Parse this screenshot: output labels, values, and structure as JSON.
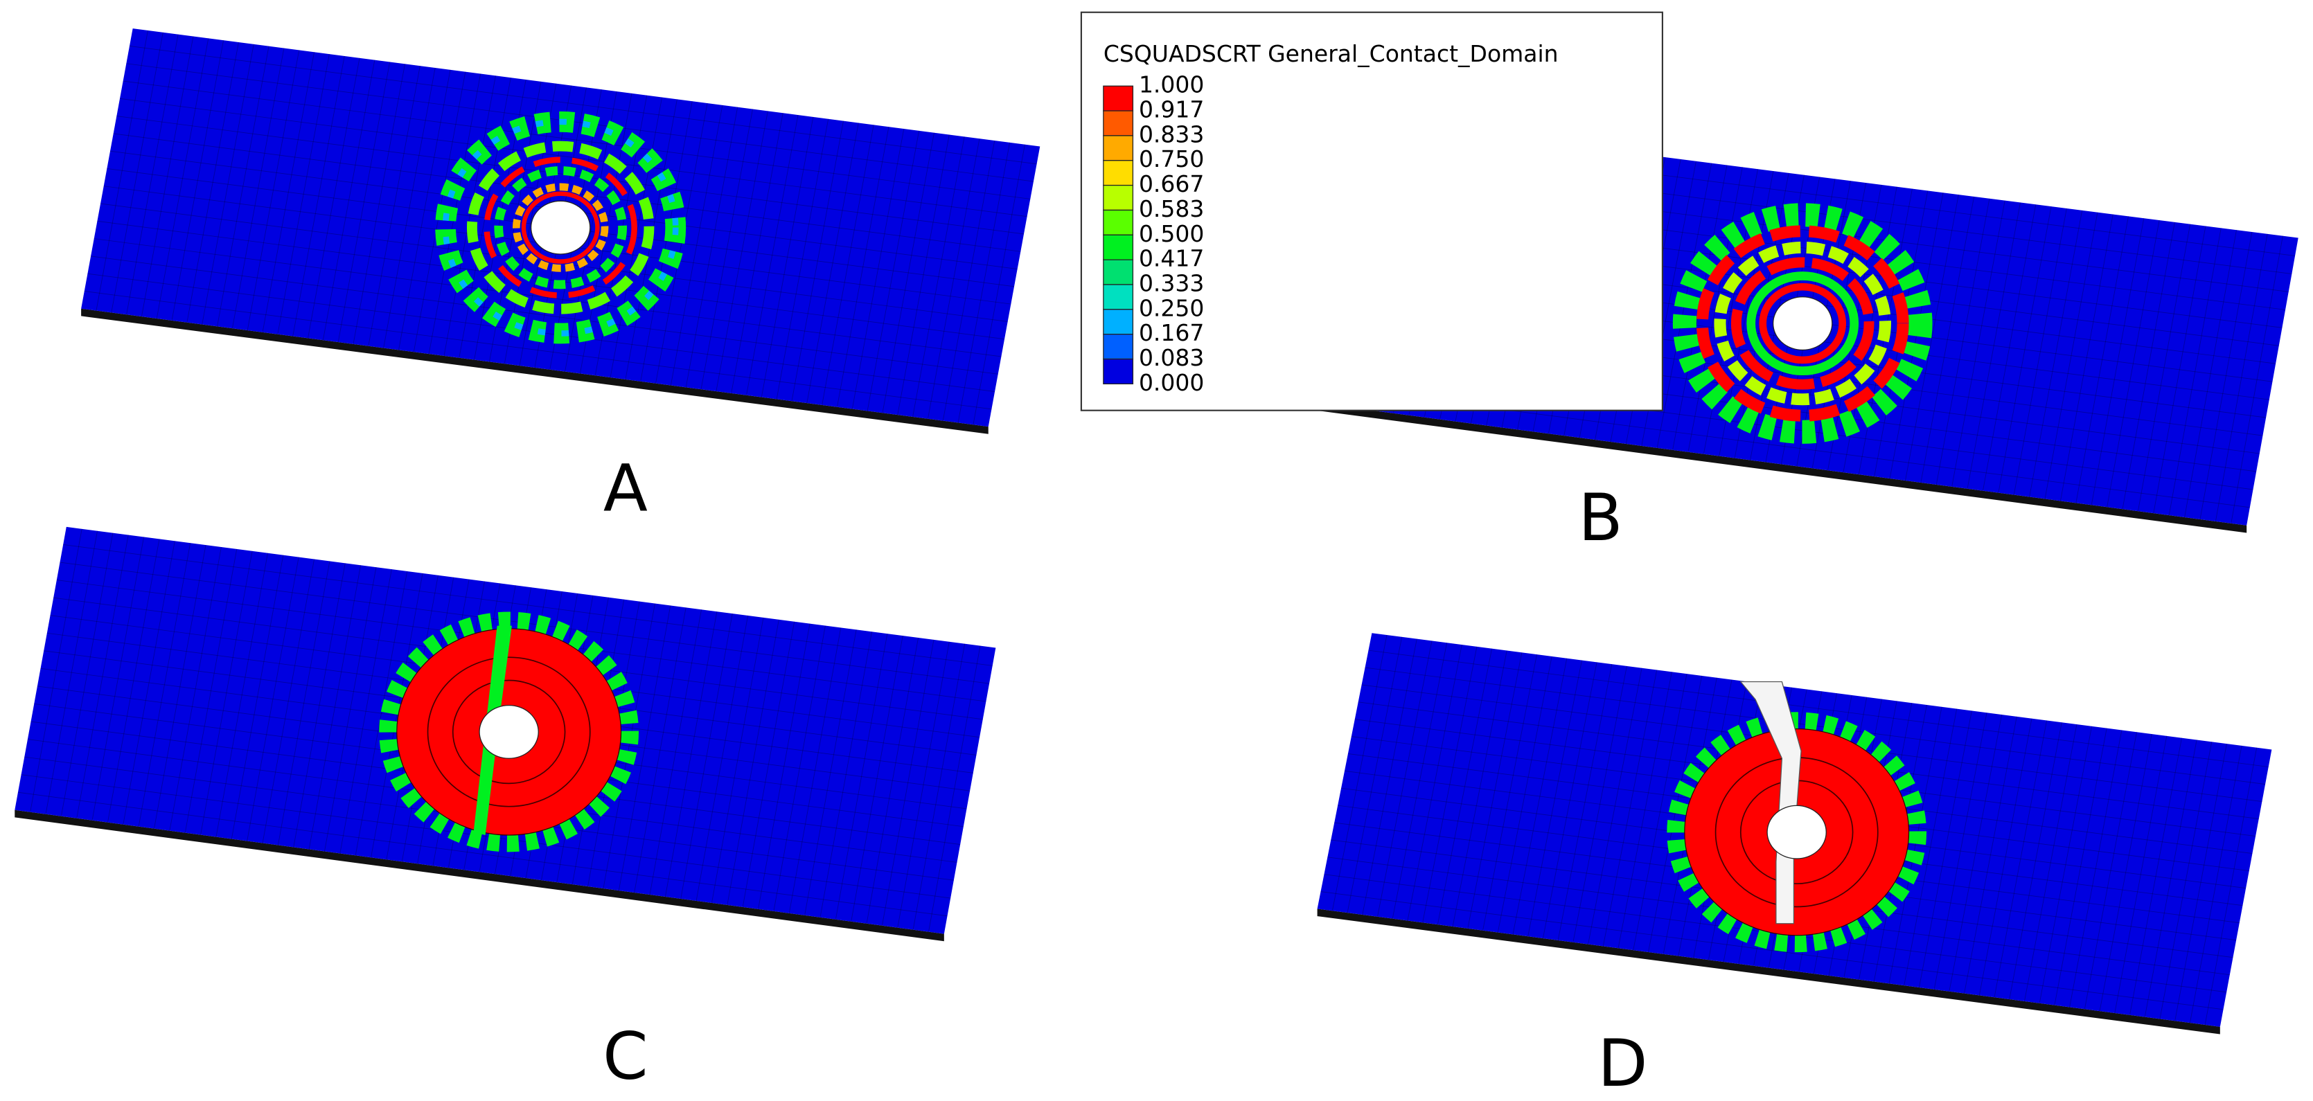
{
  "legend": {
    "title": "CSQUADSCRT General_Contact_Domain",
    "labels": [
      "1.000",
      "0.917",
      "0.833",
      "0.750",
      "0.667",
      "0.583",
      "0.500",
      "0.417",
      "0.333",
      "0.250",
      "0.167",
      "0.083",
      "0.000"
    ],
    "band_colors": [
      "#ff0000",
      "#ff5a00",
      "#ffaa00",
      "#ffdd00",
      "#b8ff00",
      "#5aff00",
      "#00f020",
      "#00e070",
      "#00e0c0",
      "#00b0ff",
      "#0060ff",
      "#0000e0"
    ]
  },
  "panels": [
    {
      "label": "A"
    },
    {
      "label": "B"
    },
    {
      "label": "C"
    },
    {
      "label": "D"
    }
  ]
}
